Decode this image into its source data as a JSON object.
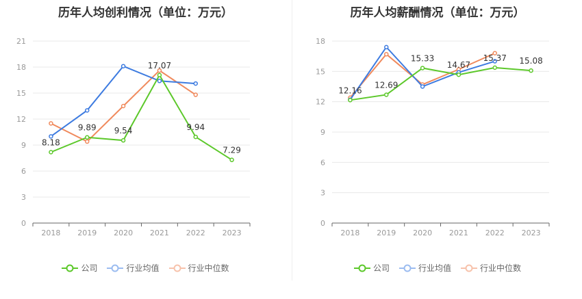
{
  "chart_data": [
    {
      "type": "line",
      "title": "历年人均创利情况（单位：万元）",
      "categories": [
        "2018",
        "2019",
        "2020",
        "2021",
        "2022",
        "2023"
      ],
      "ylim": [
        0,
        21
      ],
      "yticks": [
        0,
        3,
        6,
        9,
        12,
        15,
        18,
        21
      ],
      "grid": true,
      "legend_position": "bottom",
      "series": [
        {
          "name": "公司",
          "color": "#5cc82a",
          "values": [
            8.18,
            9.89,
            9.54,
            17.07,
            9.94,
            7.29
          ],
          "labels": [
            "8.18",
            "9.89",
            "9.54",
            "17.07",
            "9.94",
            "7.29"
          ]
        },
        {
          "name": "行业均值",
          "color": "#3d7be0",
          "values": [
            10.0,
            13.0,
            18.1,
            16.4,
            16.1,
            null
          ]
        },
        {
          "name": "行业中位数",
          "color": "#f08a5d",
          "values": [
            11.5,
            9.4,
            13.5,
            17.6,
            14.8,
            null
          ]
        }
      ]
    },
    {
      "type": "line",
      "title": "历年人均薪酬情况（单位：万元）",
      "categories": [
        "2018",
        "2019",
        "2020",
        "2021",
        "2022",
        "2023"
      ],
      "ylim": [
        0,
        18
      ],
      "yticks": [
        0,
        3,
        6,
        9,
        12,
        15,
        18
      ],
      "grid": true,
      "legend_position": "bottom",
      "series": [
        {
          "name": "公司",
          "color": "#5cc82a",
          "values": [
            12.16,
            12.69,
            15.33,
            14.67,
            15.37,
            15.08
          ],
          "labels": [
            "12.16",
            "12.69",
            "15.33",
            "14.67",
            "15.37",
            "15.08"
          ]
        },
        {
          "name": "行业均值",
          "color": "#3d7be0",
          "values": [
            12.2,
            17.4,
            13.5,
            14.9,
            16.0,
            null
          ]
        },
        {
          "name": "行业中位数",
          "color": "#f08a5d",
          "values": [
            12.4,
            16.7,
            13.7,
            15.2,
            16.8,
            null
          ]
        }
      ]
    }
  ],
  "legend": {
    "company": {
      "label": "公司",
      "color": "#5cc82a"
    },
    "industry_avg": {
      "label": "行业均值",
      "color": "#3d7be0"
    },
    "industry_median": {
      "label": "行业中位数",
      "color": "#f08a5d"
    }
  }
}
